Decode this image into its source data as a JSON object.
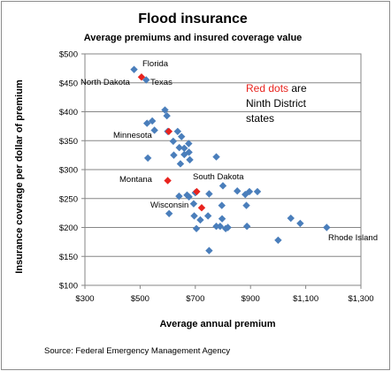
{
  "chart_data": {
    "type": "scatter",
    "title": "Flood insurance",
    "subtitle": "Average premiums and insured coverage value",
    "xlabel": "Average annual  premium",
    "ylabel": "Insurance coverage per dollar of premium",
    "xlim": [
      300,
      1300
    ],
    "ylim": [
      100,
      500
    ],
    "x_ticks": [
      "$300",
      "$500",
      "$700",
      "$900",
      "$1,100",
      "$1,300"
    ],
    "x_tick_values": [
      300,
      500,
      700,
      900,
      1100,
      1300
    ],
    "y_ticks": [
      "$100",
      "$150",
      "$200",
      "$250",
      "$300",
      "$350",
      "$400",
      "$450",
      "$500"
    ],
    "y_tick_values": [
      100,
      150,
      200,
      250,
      300,
      350,
      400,
      450,
      500
    ],
    "grid": "horizontal",
    "colors": {
      "other": "#4a7ebb",
      "ninth_district": "#e8231e"
    },
    "series": [
      {
        "group": "other",
        "points": [
          [
            478,
            473
          ],
          [
            522,
            455
          ],
          [
            590,
            403
          ],
          [
            597,
            393
          ],
          [
            525,
            380
          ],
          [
            544,
            384
          ],
          [
            552,
            368
          ],
          [
            600,
            366
          ],
          [
            620,
            349
          ],
          [
            636,
            366
          ],
          [
            650,
            357
          ],
          [
            642,
            338
          ],
          [
            660,
            337
          ],
          [
            660,
            326
          ],
          [
            677,
            330
          ],
          [
            680,
            317
          ],
          [
            676,
            345
          ],
          [
            528,
            320
          ],
          [
            622,
            325
          ],
          [
            646,
            310
          ],
          [
            776,
            322
          ],
          [
            641,
            254
          ],
          [
            670,
            256
          ],
          [
            677,
            253
          ],
          [
            700,
            260
          ],
          [
            694,
            241
          ],
          [
            750,
            258
          ],
          [
            800,
            272
          ],
          [
            796,
            238
          ],
          [
            852,
            263
          ],
          [
            881,
            257
          ],
          [
            896,
            262
          ],
          [
            925,
            262
          ],
          [
            885,
            238
          ],
          [
            605,
            224
          ],
          [
            696,
            220
          ],
          [
            718,
            213
          ],
          [
            704,
            198
          ],
          [
            746,
            220
          ],
          [
            776,
            202
          ],
          [
            790,
            202
          ],
          [
            797,
            215
          ],
          [
            810,
            198
          ],
          [
            818,
            200
          ],
          [
            887,
            202
          ],
          [
            1000,
            178
          ],
          [
            1046,
            216
          ],
          [
            1080,
            207
          ],
          [
            1176,
            200
          ],
          [
            750,
            160
          ]
        ]
      },
      {
        "group": "ninth_district",
        "points": [
          [
            505,
            460
          ],
          [
            604,
            366
          ],
          [
            600,
            281
          ],
          [
            705,
            262
          ],
          [
            723,
            234
          ]
        ]
      }
    ],
    "point_labels": [
      {
        "text": "Florida"
      },
      {
        "text": "North Dakota"
      },
      {
        "text": "Texas"
      },
      {
        "text": "Minnesota"
      },
      {
        "text": "Montana"
      },
      {
        "text": "South Dakota"
      },
      {
        "text": "Wisconsin"
      },
      {
        "text": "Rhode Island"
      }
    ],
    "annotation": {
      "red_part": "Red dots",
      "rest_line1": " are",
      "line2": "Ninth District",
      "line3": "states"
    },
    "source": "Source: Federal Emergency Management Agency"
  }
}
